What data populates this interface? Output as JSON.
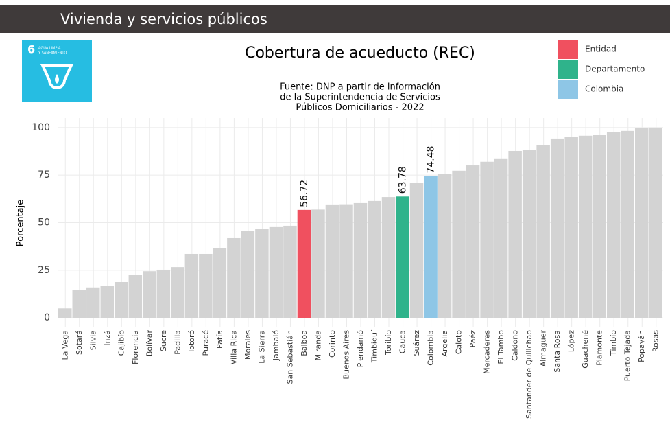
{
  "header": {
    "title": "Vivienda y servicios públicos",
    "icon_number": "6",
    "icon_text": [
      "AGUA LIMPIA",
      "Y SANEAMIENTO"
    ]
  },
  "chart_data": {
    "type": "bar",
    "title": "Cobertura de acueducto (REC)",
    "subtitle": [
      "Fuente: DNP a partir de información",
      "de la Superintendencia de Servicios",
      "Públicos Domiciliarios - 2022"
    ],
    "y_label": "Porcentaje",
    "categories": [
      "La Vega",
      "Sotará",
      "Silvia",
      "Inzá",
      "Cajibío",
      "Florencia",
      "Bolívar",
      "Sucre",
      "Padilla",
      "Totoró",
      "Puracé",
      "Patía",
      "Villa Rica",
      "Morales",
      "La Sierra",
      "Jambaló",
      "San Sebastián",
      "Balboa",
      "Miranda",
      "Corinto",
      "Buenos Aires",
      "Piendamó",
      "Timbiquí",
      "Toribío",
      "Cauca",
      "Suárez",
      "Colombia",
      "Argelia",
      "Caloto",
      "Paéz",
      "Mercaderes",
      "El Tambo",
      "Caldono",
      "Santander de Quilichao",
      "Almaguer",
      "Santa Rosa",
      "López",
      "Guachené",
      "Piamonte",
      "Timbío",
      "Puerto Tejada",
      "Popayán",
      "Rosas"
    ],
    "values": [
      5,
      14.5,
      16,
      17,
      18.8,
      22.7,
      24.5,
      25.3,
      26.7,
      33.6,
      33.6,
      36.8,
      41.9,
      45.8,
      46.6,
      47.7,
      48.4,
      56.72,
      56.9,
      59.6,
      59.7,
      60.3,
      61.4,
      63.5,
      63.78,
      71.1,
      74.48,
      75.5,
      77.3,
      80.1,
      82,
      83.8,
      87.7,
      88.4,
      90.6,
      94.2,
      94.9,
      95.7,
      96,
      97.5,
      98.2,
      99.6,
      100
    ],
    "value_labels": [
      null,
      null,
      null,
      null,
      null,
      null,
      null,
      null,
      null,
      null,
      null,
      null,
      null,
      null,
      null,
      null,
      null,
      "56.72",
      null,
      null,
      null,
      null,
      null,
      null,
      "63.78",
      null,
      "74.48",
      null,
      null,
      null,
      null,
      null,
      null,
      null,
      null,
      null,
      null,
      null,
      null,
      null,
      null,
      null,
      null
    ],
    "color": "#d3d3d3",
    "highlight": {
      "Balboa": 0,
      "Cauca": 1,
      "Colombia": 2
    },
    "legend": [
      {
        "name": "Entidad",
        "color": "#f0505f"
      },
      {
        "name": "Departamento",
        "color": "#2fb38b"
      },
      {
        "name": "Colombia",
        "color": "#8ec6e6"
      }
    ],
    "ylim": [
      -5,
      105
    ],
    "yticks": [
      0,
      25,
      50,
      75,
      100
    ],
    "grid": true
  }
}
